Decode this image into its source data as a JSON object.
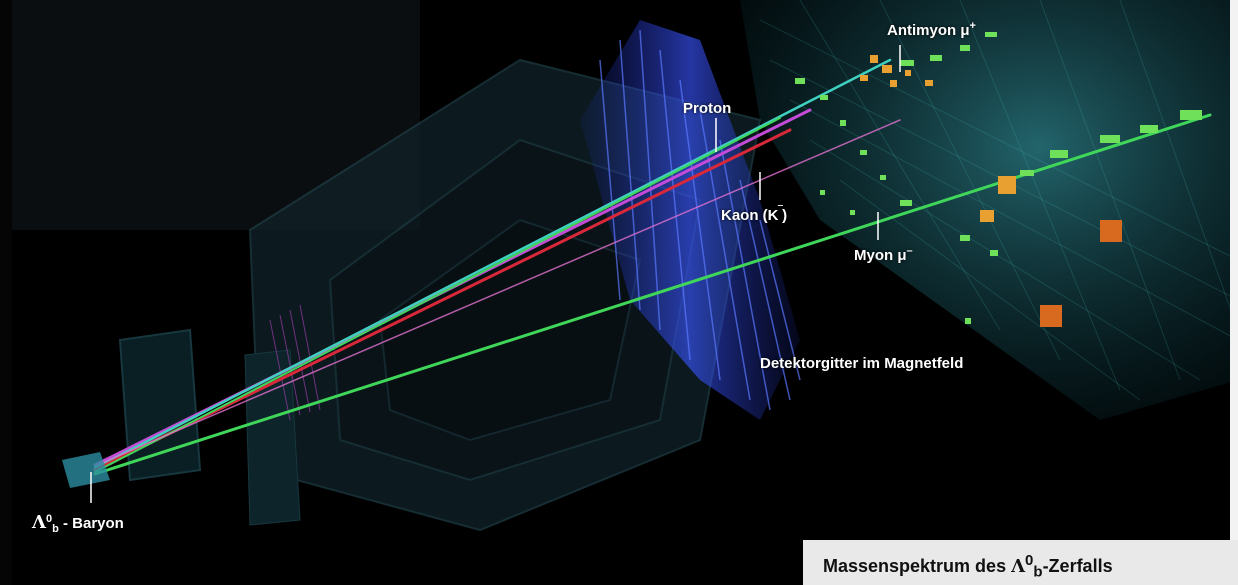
{
  "labels": {
    "antimuon": "Antimyon μ",
    "antimuon_sup": "+",
    "proton": "Proton",
    "kaon": "Kaon (K",
    "kaon_sup": "‾",
    "kaon_close": ")",
    "muon": "Myon μ",
    "muon_sup": "–",
    "detector_grid": "Detektorgitter im Magnetfeld",
    "baryon_symbol": "Λ",
    "baryon_sup": "0",
    "baryon_sub": "b",
    "baryon_suffix": " - Baryon"
  },
  "caption": {
    "prefix": "Massenspektrum des ",
    "symbol": "Λ",
    "sup": "0",
    "sub": "b",
    "suffix": "-Zerfalls"
  },
  "colors": {
    "background": "#000000",
    "proton_track": "#c44bd8",
    "kaon_track": "#d8283a",
    "muon_track": "#3fd65a",
    "antimuon_track": "#3fd0c0",
    "detector": "#2e9fb0",
    "hits_green": "#6fe05a",
    "hits_orange": "#e8a030",
    "caption_bg": "#e9e9e9"
  }
}
